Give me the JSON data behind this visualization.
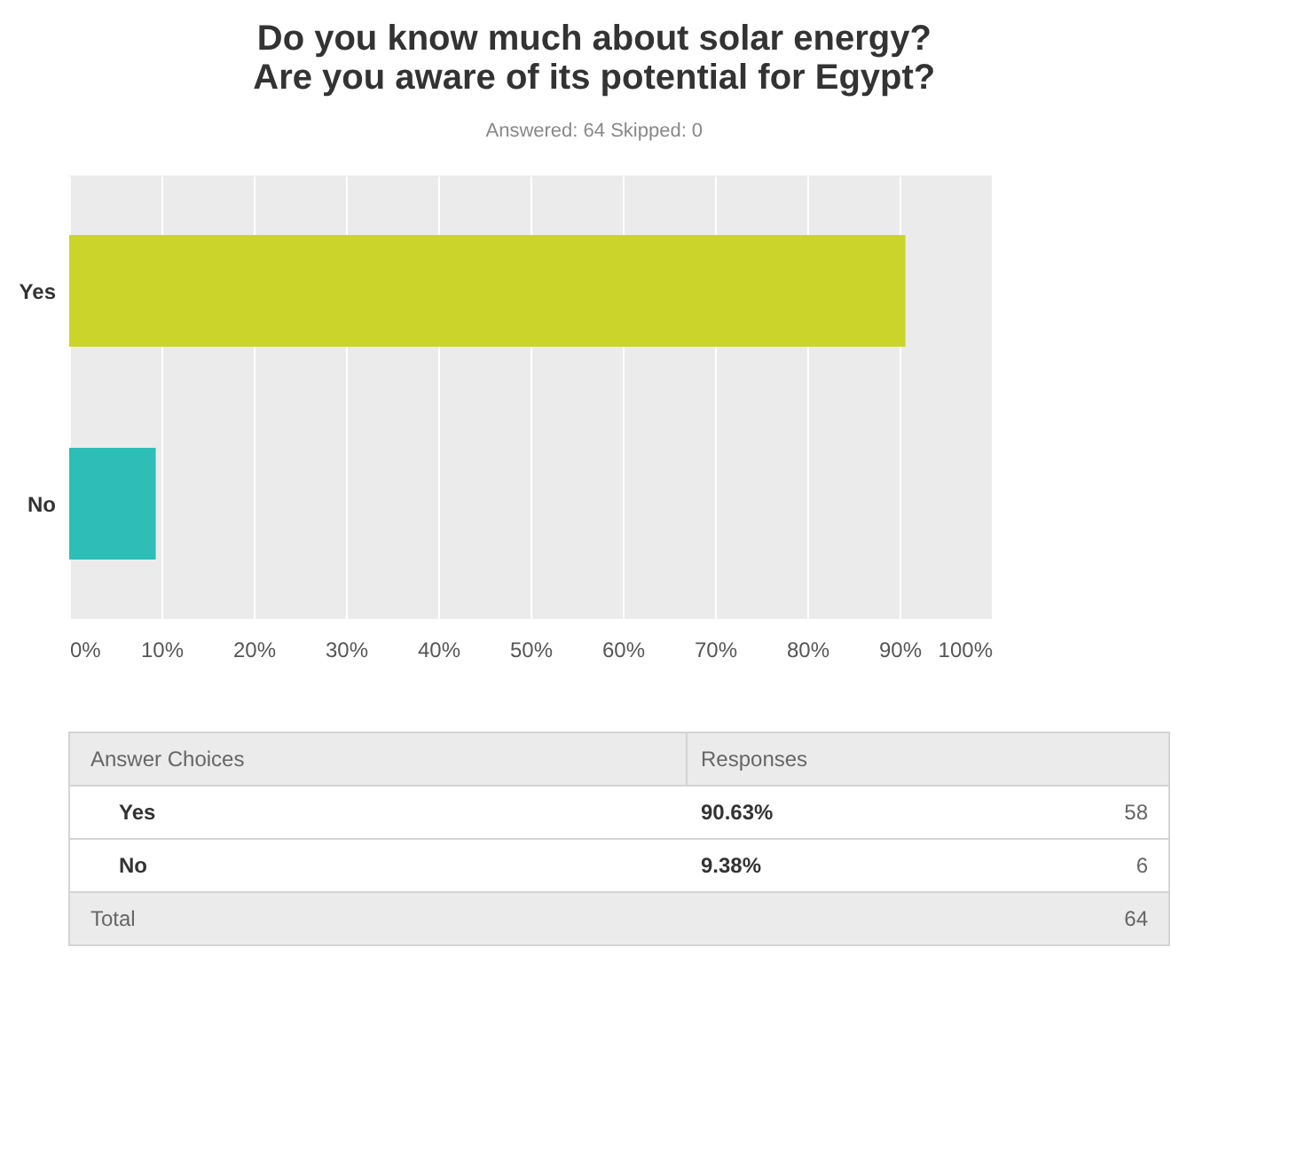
{
  "chart_data": {
    "type": "bar",
    "orientation": "horizontal",
    "title": "Do you know much about solar energy?\nAre you aware of its potential for Egypt?",
    "subtitle": "Answered: 64    Skipped: 0",
    "categories": [
      "Yes",
      "No"
    ],
    "values": [
      90.63,
      9.38
    ],
    "colors": [
      "#cad42a",
      "#2fbdb7"
    ],
    "xlim": [
      0,
      100
    ],
    "xticks": [
      {
        "value": 0,
        "label": "0%"
      },
      {
        "value": 10,
        "label": "10%"
      },
      {
        "value": 20,
        "label": "20%"
      },
      {
        "value": 30,
        "label": "30%"
      },
      {
        "value": 40,
        "label": "40%"
      },
      {
        "value": 50,
        "label": "50%"
      },
      {
        "value": 60,
        "label": "60%"
      },
      {
        "value": 70,
        "label": "70%"
      },
      {
        "value": 80,
        "label": "80%"
      },
      {
        "value": 90,
        "label": "90%"
      },
      {
        "value": 100,
        "label": "100%"
      }
    ],
    "grid": "x",
    "annotations": [
      "Answer Choices",
      "Responses",
      "90.63%",
      "58",
      "9.38%",
      "6",
      "Total",
      "64"
    ]
  }
}
